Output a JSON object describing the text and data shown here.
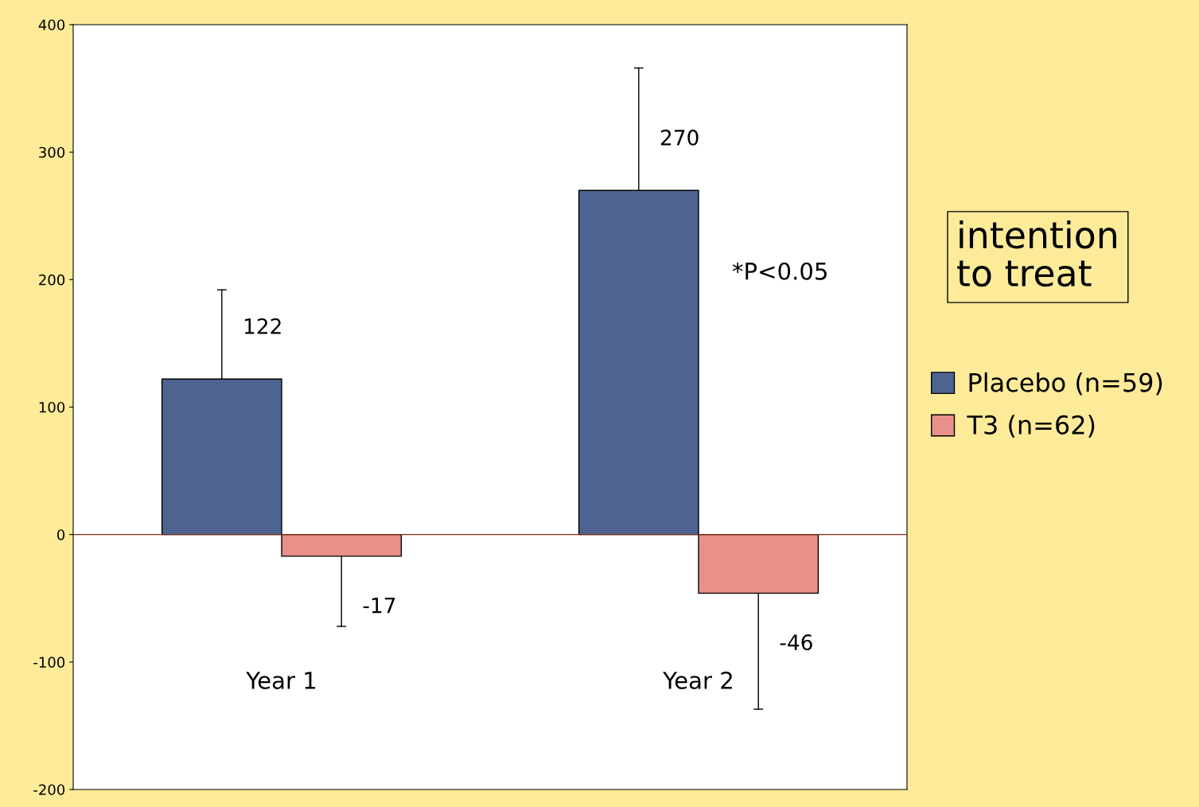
{
  "chart_data": {
    "type": "bar",
    "categories": [
      "Year 1",
      "Year 2"
    ],
    "series": [
      {
        "name": "Placebo (n=59)",
        "color": "#4d6491",
        "values": [
          122,
          270
        ],
        "errors": [
          [
            122,
            192
          ],
          [
            270,
            366
          ]
        ]
      },
      {
        "name": "T3 (n=62)",
        "color": "#e8908a",
        "values": [
          -17,
          -46
        ],
        "errors": [
          [
            -72,
            -17
          ],
          [
            -137,
            -46
          ]
        ]
      }
    ],
    "data_labels": true,
    "annotations": [
      "*P<0.05",
      "intention\nto treat"
    ],
    "ylim": [
      -200,
      400
    ],
    "yticks": [
      -200,
      -100,
      0,
      100,
      200,
      300,
      400
    ],
    "ref_lines": [
      {
        "axis": "y",
        "value": 0,
        "color": "#7a2a10"
      }
    ],
    "grid": false,
    "legend": "right"
  }
}
